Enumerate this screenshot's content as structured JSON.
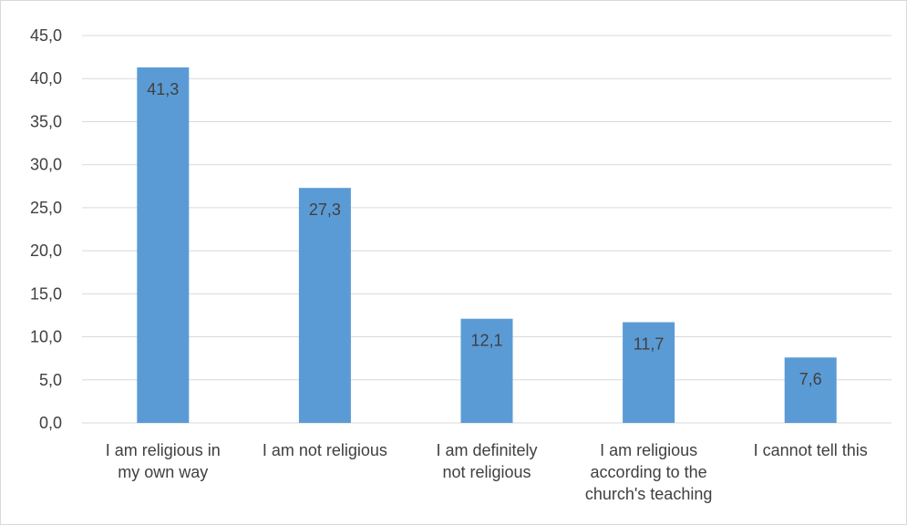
{
  "chart_data": {
    "type": "bar",
    "categories": [
      [
        "I am religious in",
        "my own way"
      ],
      [
        "I am not religious"
      ],
      [
        "I am definitely",
        "not religious"
      ],
      [
        "I am religious",
        "according to the",
        "church's teaching"
      ],
      [
        "I cannot tell this"
      ]
    ],
    "values": [
      41.3,
      27.3,
      12.1,
      11.7,
      7.6
    ],
    "value_labels": [
      "41,3",
      "27,3",
      "12,1",
      "11,7",
      "7,6"
    ],
    "y_ticks": [
      "0,0",
      "5,0",
      "10,0",
      "15,0",
      "20,0",
      "25,0",
      "30,0",
      "35,0",
      "40,0",
      "45,0"
    ],
    "ylim": [
      0,
      45
    ],
    "grid": true,
    "legend": "none",
    "bar_color": "#5b9bd5"
  }
}
